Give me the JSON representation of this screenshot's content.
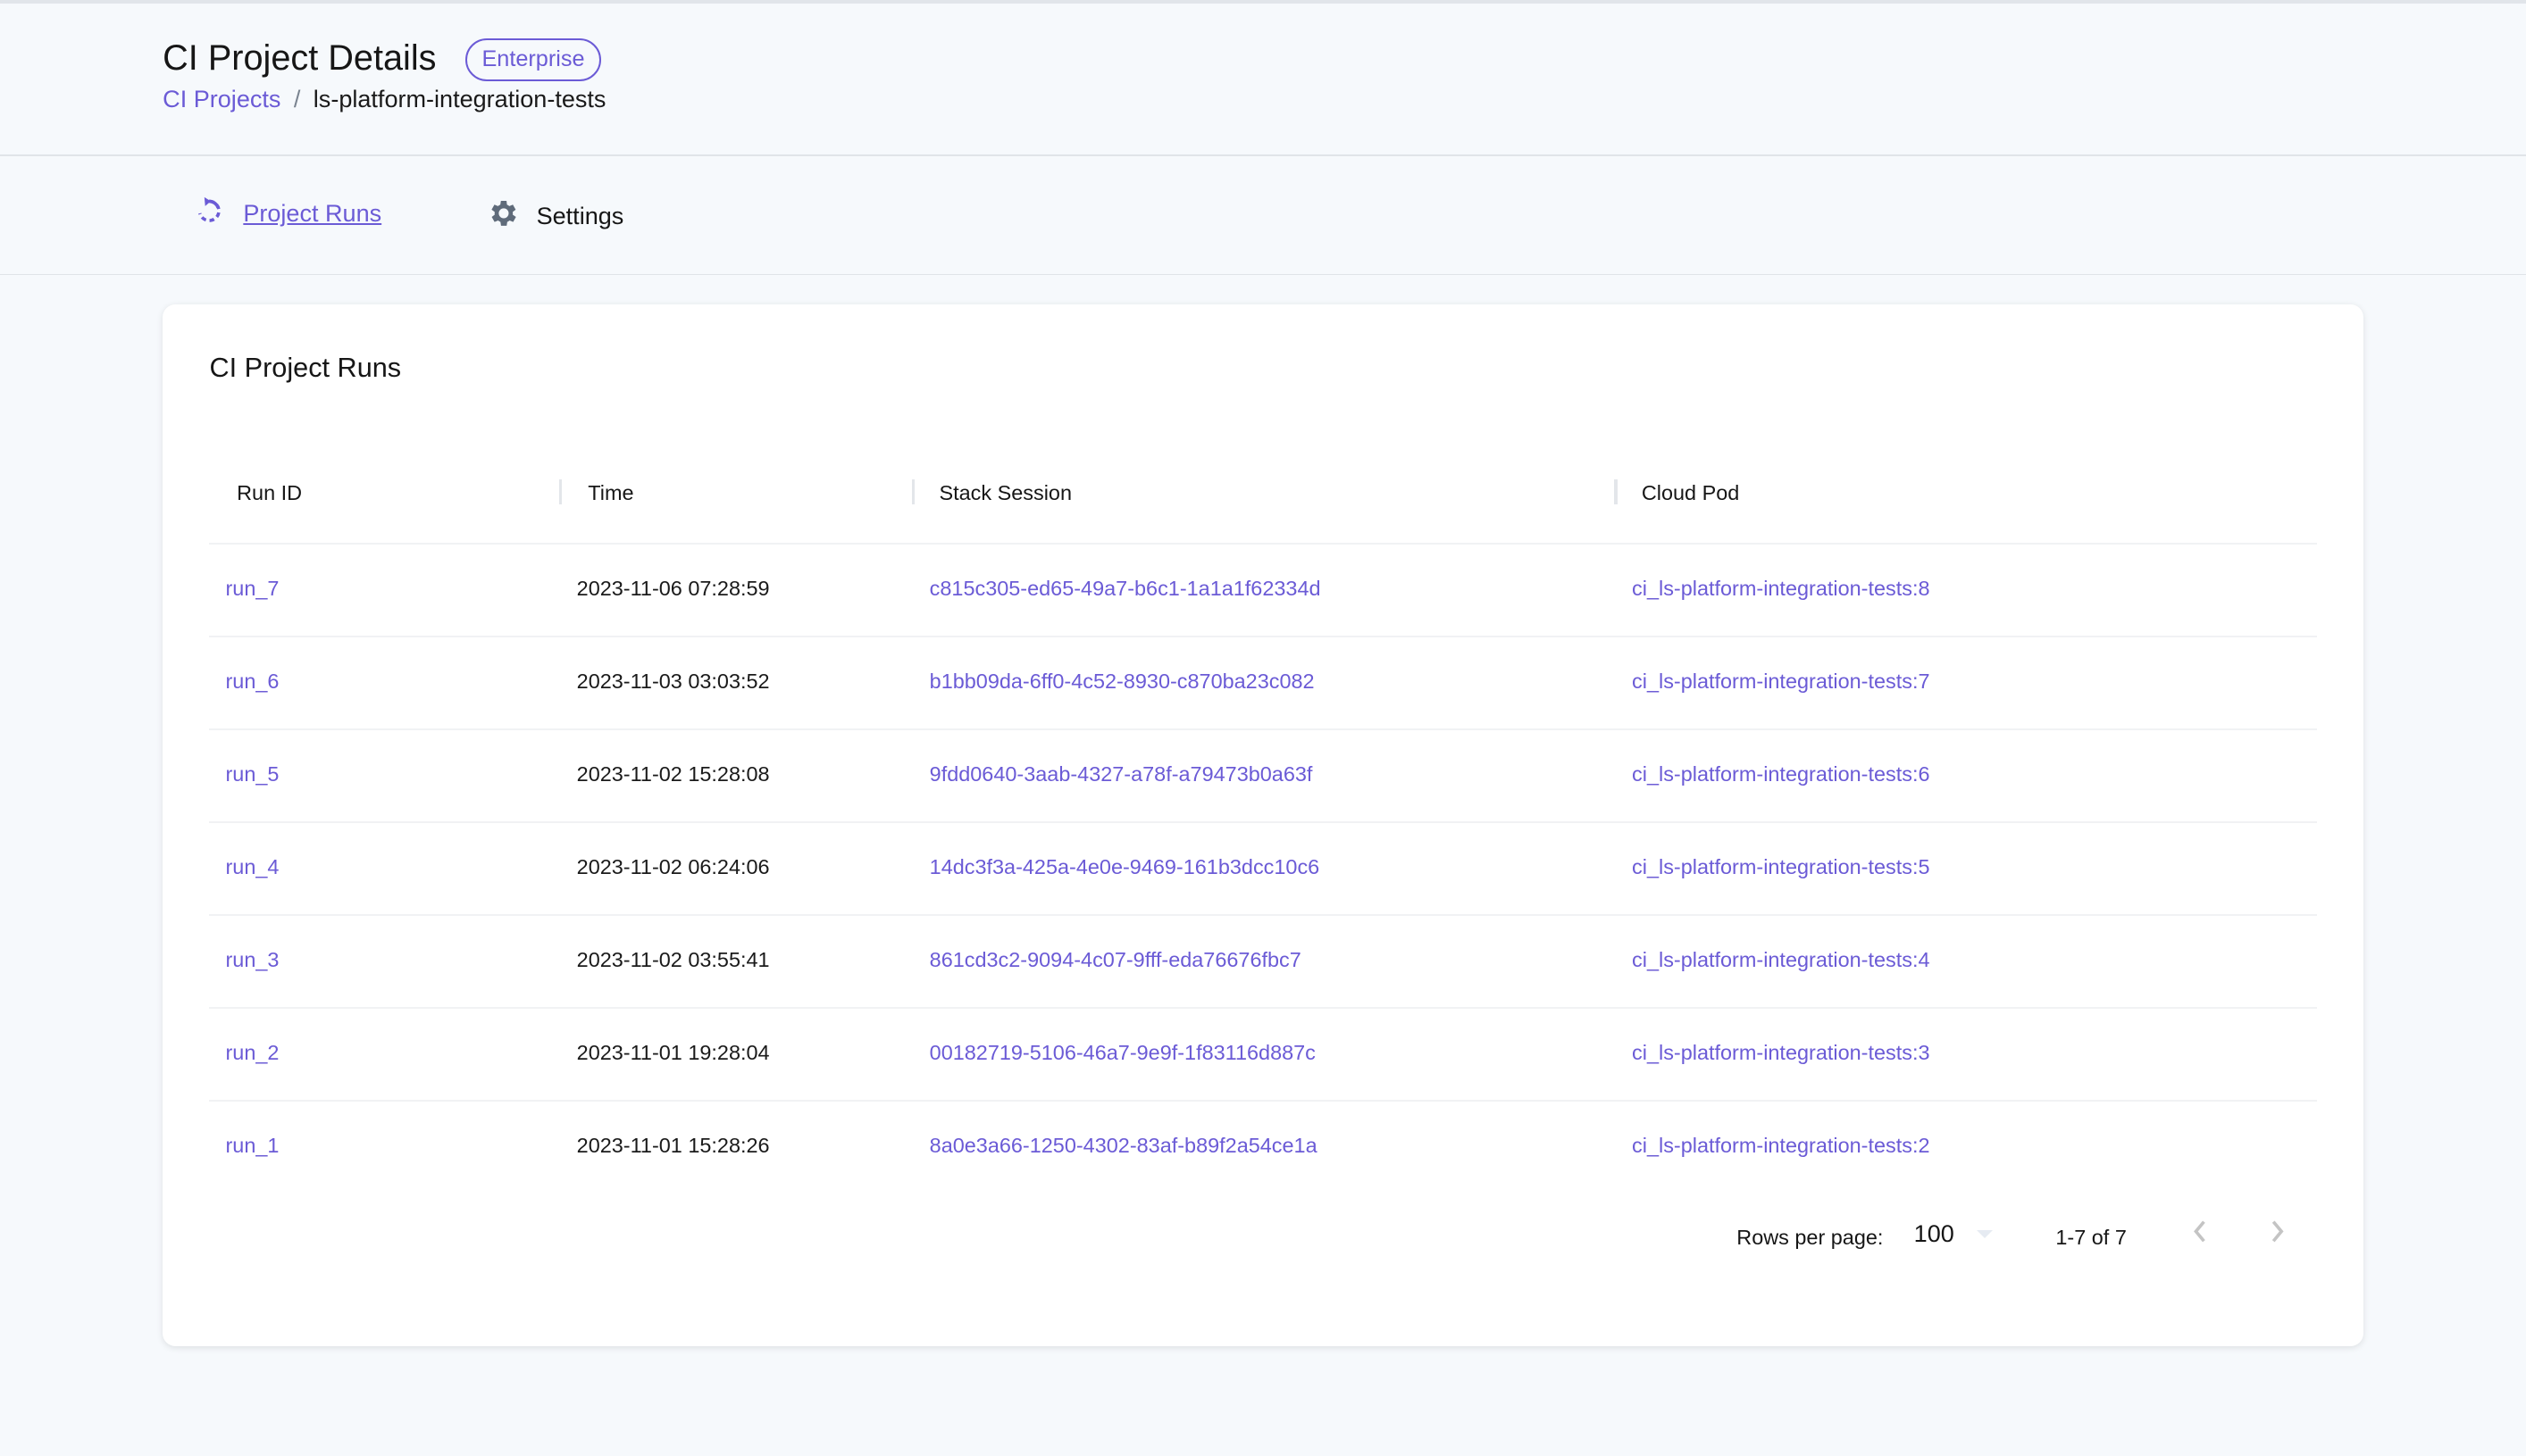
{
  "header": {
    "title": "CI Project Details",
    "badge": "Enterprise",
    "breadcrumb": {
      "parent": "CI Projects",
      "separator": "/",
      "current": "ls-platform-integration-tests"
    }
  },
  "tabs": [
    {
      "label": "Project Runs",
      "icon": "history-icon",
      "active": true
    },
    {
      "label": "Settings",
      "icon": "gear-icon",
      "active": false
    }
  ],
  "card": {
    "title": "CI Project Runs",
    "columns": [
      "Run ID",
      "Time",
      "Stack Session",
      "Cloud Pod"
    ],
    "rows": [
      {
        "run_id": "run_7",
        "time": "2023-11-06 07:28:59",
        "session": "c815c305-ed65-49a7-b6c1-1a1a1f62334d",
        "pod": "ci_ls-platform-integration-tests:8"
      },
      {
        "run_id": "run_6",
        "time": "2023-11-03 03:03:52",
        "session": "b1bb09da-6ff0-4c52-8930-c870ba23c082",
        "pod": "ci_ls-platform-integration-tests:7"
      },
      {
        "run_id": "run_5",
        "time": "2023-11-02 15:28:08",
        "session": "9fdd0640-3aab-4327-a78f-a79473b0a63f",
        "pod": "ci_ls-platform-integration-tests:6"
      },
      {
        "run_id": "run_4",
        "time": "2023-11-02 06:24:06",
        "session": "14dc3f3a-425a-4e0e-9469-161b3dcc10c6",
        "pod": "ci_ls-platform-integration-tests:5"
      },
      {
        "run_id": "run_3",
        "time": "2023-11-02 03:55:41",
        "session": "861cd3c2-9094-4c07-9fff-eda76676fbc7",
        "pod": "ci_ls-platform-integration-tests:4"
      },
      {
        "run_id": "run_2",
        "time": "2023-11-01 19:28:04",
        "session": "00182719-5106-46a7-9e9f-1f83116d887c",
        "pod": "ci_ls-platform-integration-tests:3"
      },
      {
        "run_id": "run_1",
        "time": "2023-11-01 15:28:26",
        "session": "8a0e3a66-1250-4302-83af-b89f2a54ce1a",
        "pod": "ci_ls-platform-integration-tests:2"
      }
    ],
    "pagination": {
      "rows_per_page_label": "Rows per page:",
      "rows_per_page": "100",
      "range": "1-7 of 7"
    }
  },
  "colors": {
    "accent": "#6b5bd6",
    "background": "#f6f9fc",
    "card": "#ffffff"
  }
}
